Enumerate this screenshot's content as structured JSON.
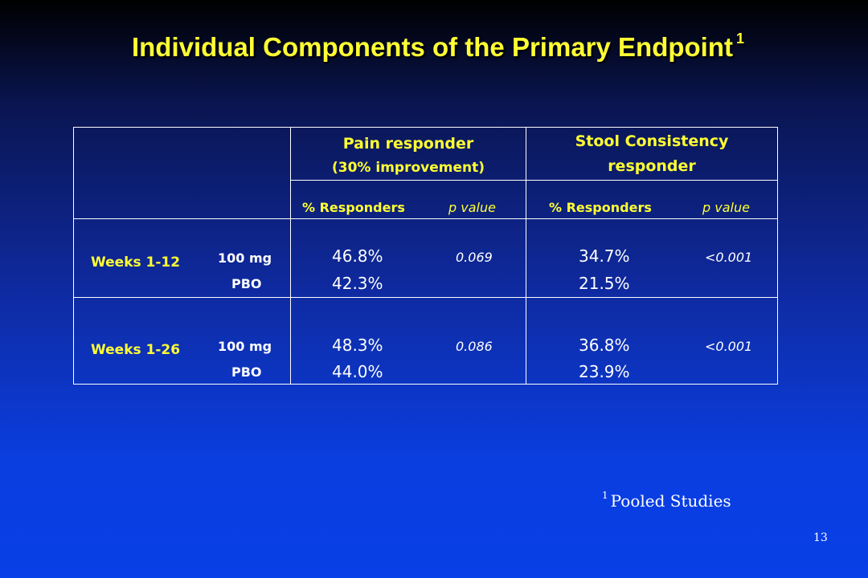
{
  "slide": {
    "title": "Individual Components of the Primary Endpoint",
    "title_footnote_marker": "1",
    "footnote_marker": "1",
    "footnote_text": "Pooled Studies",
    "slide_number": "13"
  },
  "table": {
    "groups": [
      {
        "label": "Pain responder",
        "sublabel": "(30% improvement)"
      },
      {
        "label": "Stool Consistency",
        "sublabel": "responder"
      }
    ],
    "col_responders": "% Responders",
    "col_pvalue": "p value",
    "rows": [
      {
        "period": "Weeks  1-12",
        "dose_a": "100 mg",
        "dose_b": "PBO",
        "pain_a": "46.8%",
        "pain_b": "42.3%",
        "pain_p": "0.069",
        "stool_a": "34.7%",
        "stool_b": "21.5%",
        "stool_p": "<0.001"
      },
      {
        "period": "Weeks  1-26",
        "dose_a": "100 mg",
        "dose_b": "PBO",
        "pain_a": "48.3%",
        "pain_b": "44.0%",
        "pain_p": "0.086",
        "stool_a": "36.8%",
        "stool_b": "23.9%",
        "stool_p": "<0.001"
      }
    ]
  },
  "colors": {
    "title": "#ffff33",
    "text": "#ffffff",
    "background_top": "#000000",
    "background_bottom": "#083fe6"
  }
}
